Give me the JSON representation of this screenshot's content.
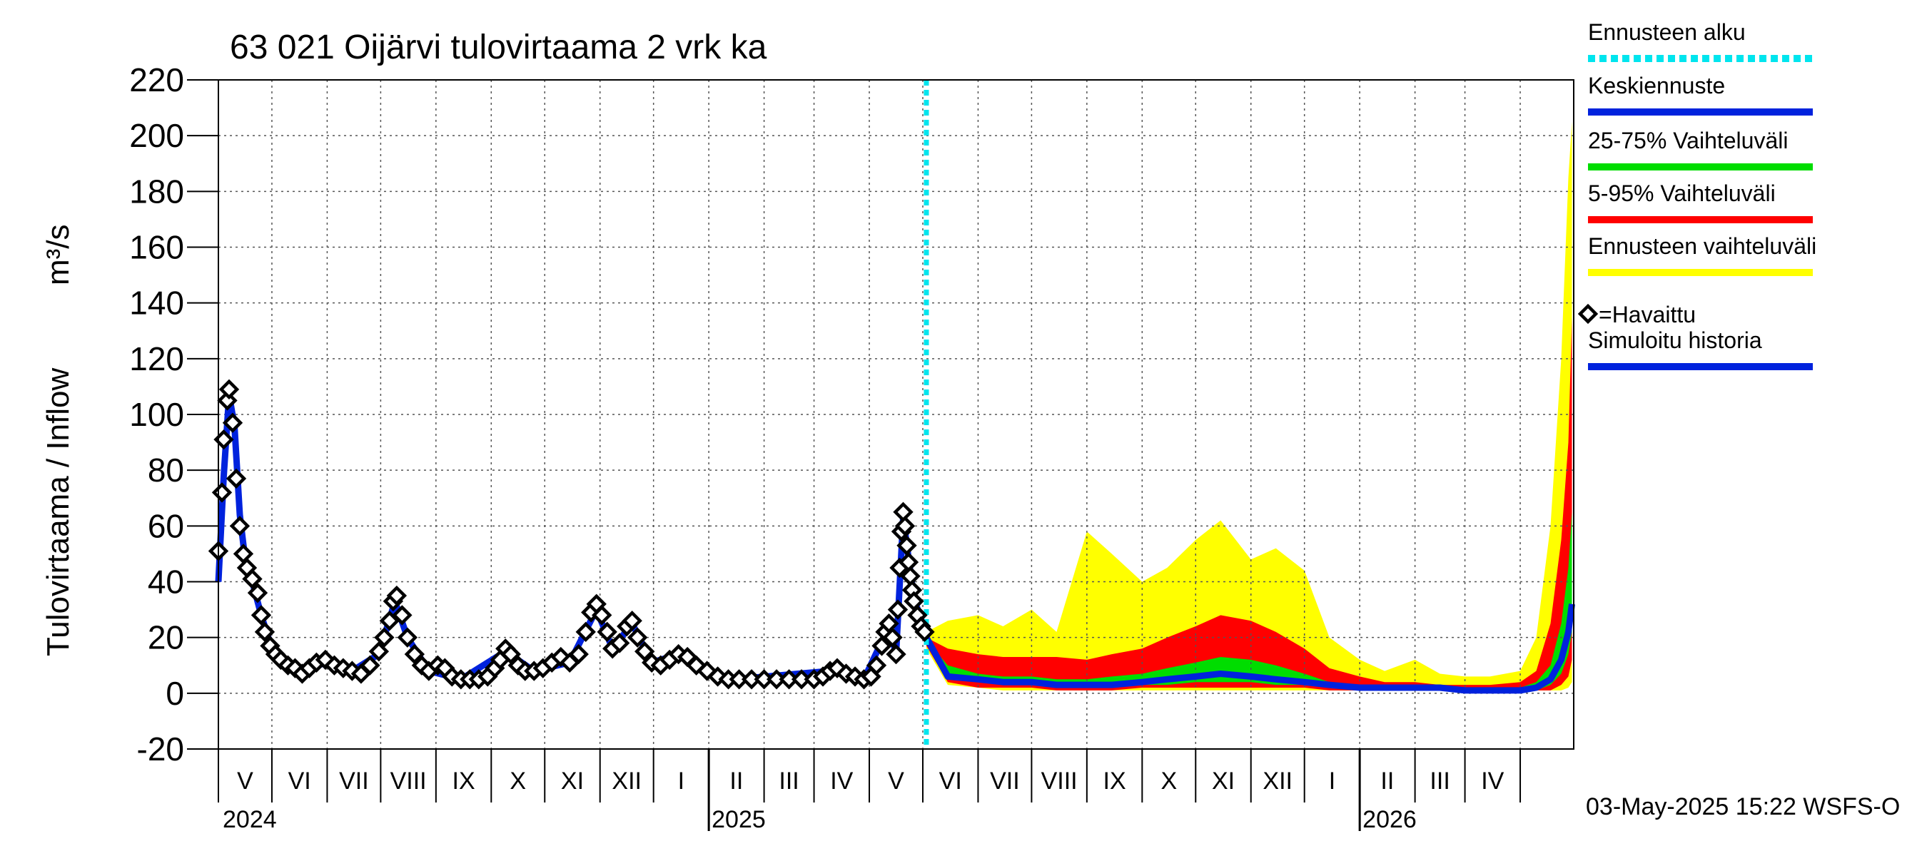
{
  "chart_data": {
    "type": "line",
    "title": "63 021 Oijärvi tulovirtaama 2 vrk ka",
    "ylabel_left": "Tulovirtaama / Inflow",
    "ylabel_unit": "m³/s",
    "ylim": [
      -20,
      220
    ],
    "yticks": [
      -20,
      0,
      20,
      40,
      60,
      80,
      100,
      120,
      140,
      160,
      180,
      200,
      220
    ],
    "xlim": [
      "2024-04-01",
      "2026-04-30"
    ],
    "x_month_labels": [
      "V",
      "VI",
      "VII",
      "VIII",
      "IX",
      "X",
      "XI",
      "XII",
      "I",
      "II",
      "III",
      "IV",
      "V",
      "VI",
      "VII",
      "VIII",
      "IX",
      "X",
      "XI",
      "XII",
      "I",
      "II",
      "III",
      "IV"
    ],
    "x_year_labels": [
      {
        "label": "2024",
        "date": "2024-01-01"
      },
      {
        "label": "2025",
        "date": "2025-01-01"
      },
      {
        "label": "2026",
        "date": "2026-01-01"
      }
    ],
    "forecast_start": "2025-05-03",
    "footer": "03-May-2025 15:22 WSFS-O",
    "grid": true,
    "legend_position": "right",
    "legend": [
      {
        "name": "Ennusteen alku",
        "color": "#00e5ee",
        "style": "dotted"
      },
      {
        "name": "Keskiennuste",
        "color": "#0022dd",
        "style": "line"
      },
      {
        "name": "25-75% Vaihteluväli",
        "color": "#00dd00",
        "style": "line"
      },
      {
        "name": "5-95% Vaihteluväli",
        "color": "#ff0000",
        "style": "line"
      },
      {
        "name": "Ennusteen vaihteluväli",
        "color": "#ffff00",
        "style": "line"
      },
      {
        "name": "=Havaittu",
        "color": "#000000",
        "style": "diamond"
      },
      {
        "name": "Simuloitu historia",
        "color": "#0022dd",
        "style": "line"
      }
    ],
    "observed": [
      [
        "2024-04-01",
        51
      ],
      [
        "2024-04-03",
        72
      ],
      [
        "2024-04-04",
        91
      ],
      [
        "2024-04-06",
        105
      ],
      [
        "2024-04-07",
        109
      ],
      [
        "2024-04-09",
        97
      ],
      [
        "2024-04-11",
        77
      ],
      [
        "2024-04-13",
        60
      ],
      [
        "2024-04-15",
        50
      ],
      [
        "2024-04-17",
        45
      ],
      [
        "2024-04-20",
        41
      ],
      [
        "2024-04-23",
        36
      ],
      [
        "2024-04-25",
        28
      ],
      [
        "2024-04-27",
        22
      ],
      [
        "2024-04-30",
        17
      ],
      [
        "2024-05-03",
        14
      ],
      [
        "2024-05-06",
        12
      ],
      [
        "2024-05-10",
        10
      ],
      [
        "2024-05-14",
        9
      ],
      [
        "2024-05-18",
        7
      ],
      [
        "2024-05-22",
        9
      ],
      [
        "2024-05-26",
        11
      ],
      [
        "2024-05-31",
        12
      ],
      [
        "2024-06-05",
        10
      ],
      [
        "2024-06-10",
        9
      ],
      [
        "2024-06-15",
        8
      ],
      [
        "2024-06-20",
        7
      ],
      [
        "2024-06-25",
        10
      ],
      [
        "2024-06-30",
        15
      ],
      [
        "2024-07-03",
        20
      ],
      [
        "2024-07-06",
        26
      ],
      [
        "2024-07-08",
        33
      ],
      [
        "2024-07-10",
        35
      ],
      [
        "2024-07-13",
        28
      ],
      [
        "2024-07-16",
        20
      ],
      [
        "2024-07-20",
        14
      ],
      [
        "2024-07-24",
        10
      ],
      [
        "2024-07-28",
        8
      ],
      [
        "2024-08-02",
        10
      ],
      [
        "2024-08-06",
        9
      ],
      [
        "2024-08-10",
        6
      ],
      [
        "2024-08-15",
        5
      ],
      [
        "2024-08-20",
        5
      ],
      [
        "2024-08-25",
        5
      ],
      [
        "2024-08-30",
        6
      ],
      [
        "2024-09-03",
        9
      ],
      [
        "2024-09-06",
        12
      ],
      [
        "2024-09-09",
        16
      ],
      [
        "2024-09-12",
        14
      ],
      [
        "2024-09-16",
        10
      ],
      [
        "2024-09-20",
        8
      ],
      [
        "2024-09-25",
        8
      ],
      [
        "2024-09-30",
        9
      ],
      [
        "2024-10-05",
        11
      ],
      [
        "2024-10-10",
        13
      ],
      [
        "2024-10-15",
        11
      ],
      [
        "2024-10-20",
        14
      ],
      [
        "2024-10-24",
        22
      ],
      [
        "2024-10-27",
        29
      ],
      [
        "2024-10-30",
        32
      ],
      [
        "2024-11-02",
        28
      ],
      [
        "2024-11-05",
        22
      ],
      [
        "2024-11-08",
        16
      ],
      [
        "2024-11-12",
        18
      ],
      [
        "2024-11-16",
        24
      ],
      [
        "2024-11-19",
        26
      ],
      [
        "2024-11-22",
        20
      ],
      [
        "2024-11-26",
        15
      ],
      [
        "2024-11-30",
        11
      ],
      [
        "2024-12-05",
        10
      ],
      [
        "2024-12-10",
        12
      ],
      [
        "2024-12-15",
        14
      ],
      [
        "2024-12-20",
        13
      ],
      [
        "2024-12-25",
        10
      ],
      [
        "2024-12-31",
        8
      ],
      [
        "2025-01-06",
        6
      ],
      [
        "2025-01-12",
        5
      ],
      [
        "2025-01-18",
        5
      ],
      [
        "2025-01-25",
        5
      ],
      [
        "2025-02-01",
        5
      ],
      [
        "2025-02-08",
        5
      ],
      [
        "2025-02-15",
        5
      ],
      [
        "2025-02-22",
        5
      ],
      [
        "2025-03-01",
        5
      ],
      [
        "2025-03-06",
        6
      ],
      [
        "2025-03-10",
        8
      ],
      [
        "2025-03-14",
        9
      ],
      [
        "2025-03-19",
        7
      ],
      [
        "2025-03-24",
        6
      ],
      [
        "2025-03-29",
        5
      ],
      [
        "2025-04-02",
        6
      ],
      [
        "2025-04-05",
        10
      ],
      [
        "2025-04-08",
        17
      ],
      [
        "2025-04-10",
        22
      ],
      [
        "2025-04-12",
        25
      ],
      [
        "2025-04-14",
        20
      ],
      [
        "2025-04-16",
        14
      ],
      [
        "2025-04-17",
        30
      ],
      [
        "2025-04-18",
        45
      ],
      [
        "2025-04-19",
        58
      ],
      [
        "2025-04-20",
        65
      ],
      [
        "2025-04-21",
        60
      ],
      [
        "2025-04-22",
        53
      ],
      [
        "2025-04-23",
        47
      ],
      [
        "2025-04-24",
        42
      ],
      [
        "2025-04-25",
        37
      ],
      [
        "2025-04-26",
        33
      ],
      [
        "2025-04-28",
        28
      ],
      [
        "2025-04-30",
        24
      ],
      [
        "2025-05-02",
        22
      ]
    ],
    "simulated": [
      [
        "2024-04-01",
        40
      ],
      [
        "2024-04-04",
        78
      ],
      [
        "2024-04-07",
        107
      ],
      [
        "2024-04-10",
        96
      ],
      [
        "2024-04-13",
        64
      ],
      [
        "2024-04-16",
        48
      ],
      [
        "2024-04-20",
        40
      ],
      [
        "2024-04-25",
        28
      ],
      [
        "2024-05-01",
        16
      ],
      [
        "2024-05-10",
        10
      ],
      [
        "2024-05-20",
        8
      ],
      [
        "2024-05-31",
        11
      ],
      [
        "2024-06-15",
        8
      ],
      [
        "2024-06-30",
        14
      ],
      [
        "2024-07-09",
        33
      ],
      [
        "2024-07-16",
        20
      ],
      [
        "2024-07-28",
        8
      ],
      [
        "2024-08-15",
        5
      ],
      [
        "2024-09-09",
        15
      ],
      [
        "2024-09-25",
        8
      ],
      [
        "2024-10-15",
        11
      ],
      [
        "2024-10-30",
        30
      ],
      [
        "2024-11-08",
        16
      ],
      [
        "2024-11-19",
        25
      ],
      [
        "2024-11-30",
        11
      ],
      [
        "2024-12-15",
        14
      ],
      [
        "2024-12-31",
        8
      ],
      [
        "2025-01-15",
        5
      ],
      [
        "2025-03-10",
        8
      ],
      [
        "2025-03-29",
        5
      ],
      [
        "2025-04-12",
        24
      ],
      [
        "2025-04-16",
        14
      ],
      [
        "2025-04-20",
        63
      ],
      [
        "2025-04-26",
        34
      ],
      [
        "2025-05-03",
        21
      ]
    ],
    "forecast_dates": [
      "2025-05-03",
      "2025-05-15",
      "2025-06-01",
      "2025-06-15",
      "2025-07-01",
      "2025-07-15",
      "2025-08-01",
      "2025-08-15",
      "2025-09-01",
      "2025-09-15",
      "2025-10-01",
      "2025-10-15",
      "2025-11-01",
      "2025-11-15",
      "2025-12-01",
      "2025-12-15",
      "2026-01-01",
      "2026-01-15",
      "2026-02-01",
      "2026-02-15",
      "2026-03-01",
      "2026-03-15",
      "2026-04-01",
      "2026-04-10",
      "2026-04-18",
      "2026-04-24",
      "2026-04-28",
      "2026-04-30"
    ],
    "forecast_max": [
      22,
      26,
      28,
      24,
      30,
      22,
      58,
      50,
      40,
      45,
      55,
      62,
      48,
      52,
      44,
      20,
      12,
      8,
      12,
      7,
      6,
      6,
      8,
      20,
      60,
      120,
      185,
      205
    ],
    "forecast_p95": [
      20,
      16,
      14,
      13,
      13,
      13,
      12,
      14,
      16,
      20,
      24,
      28,
      26,
      22,
      16,
      9,
      6,
      4,
      4,
      3,
      3,
      3,
      4,
      8,
      25,
      55,
      90,
      135
    ],
    "forecast_p75": [
      19,
      10,
      7,
      6,
      6,
      5,
      5,
      6,
      7,
      9,
      11,
      13,
      12,
      10,
      7,
      4,
      3,
      2,
      2,
      2,
      2,
      2,
      2,
      4,
      10,
      25,
      45,
      65
    ],
    "forecast_mean": [
      20,
      6,
      5,
      4,
      4,
      3,
      3,
      3,
      4,
      5,
      6,
      7,
      6,
      5,
      4,
      3,
      2,
      2,
      2,
      2,
      1,
      1,
      1,
      2,
      5,
      12,
      22,
      32
    ],
    "forecast_p25": [
      18,
      5,
      4,
      3,
      3,
      2,
      2,
      2,
      3,
      3,
      4,
      4,
      4,
      3,
      3,
      2,
      1,
      1,
      1,
      1,
      1,
      1,
      1,
      1,
      3,
      7,
      14,
      22
    ],
    "forecast_p05": [
      17,
      4,
      2,
      2,
      2,
      1,
      1,
      1,
      2,
      2,
      2,
      2,
      2,
      2,
      2,
      1,
      1,
      1,
      1,
      1,
      1,
      1,
      1,
      1,
      1,
      3,
      6,
      12
    ],
    "forecast_min": [
      16,
      3,
      2,
      1,
      1,
      1,
      1,
      1,
      1,
      1,
      1,
      1,
      1,
      1,
      1,
      1,
      1,
      1,
      1,
      1,
      1,
      1,
      1,
      1,
      1,
      1,
      2,
      4
    ],
    "colors": {
      "max_band": "#ffff00",
      "p5_95_band": "#ff0000",
      "p25_75_band": "#00dd00",
      "mean": "#0022dd",
      "simulated": "#0022dd",
      "observed": "#000000",
      "forecast_start": "#00e5ee",
      "grid": "#555555"
    }
  }
}
